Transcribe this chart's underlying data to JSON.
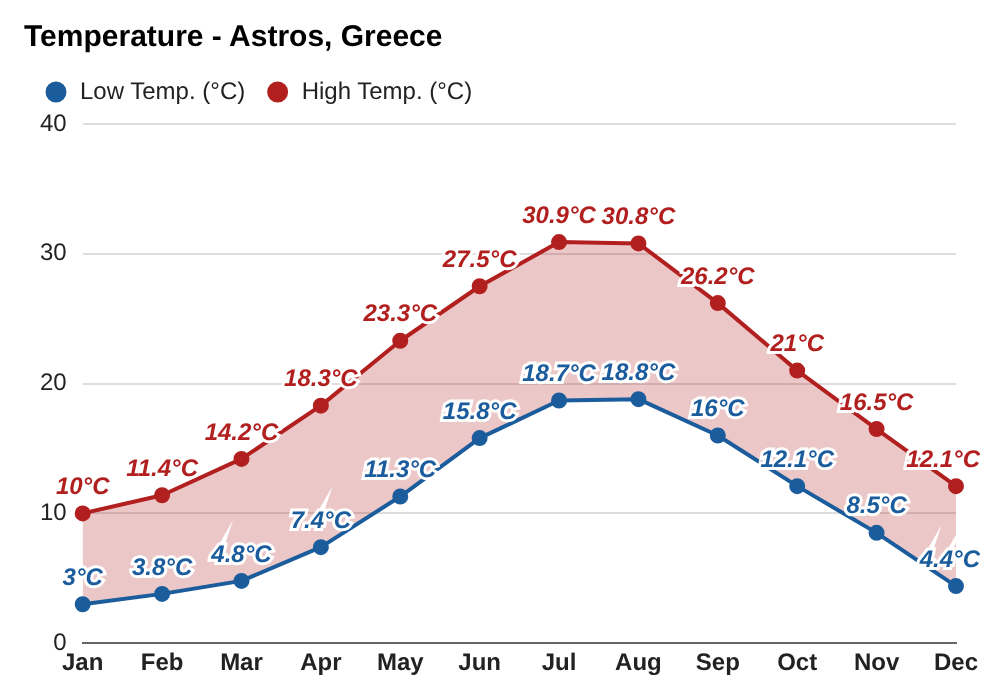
{
  "chart_data": {
    "type": "line",
    "title": "Temperature - Astros, Greece",
    "categories": [
      "Jan",
      "Feb",
      "Mar",
      "Apr",
      "May",
      "Jun",
      "Jul",
      "Aug",
      "Sep",
      "Oct",
      "Nov",
      "Dec"
    ],
    "series": [
      {
        "name": "Low Temp. (°C)",
        "color": "#1b5c9c",
        "values": [
          3,
          3.8,
          4.8,
          7.4,
          11.3,
          15.8,
          18.7,
          18.8,
          16,
          12.1,
          8.5,
          4.4
        ],
        "value_labels": [
          "3°C",
          "3.8°C",
          "4.8°C",
          "7.4°C",
          "11.3°C",
          "15.8°C",
          "18.7°C",
          "18.8°C",
          "16°C",
          "12.1°C",
          "8.5°C",
          "4.4°C"
        ]
      },
      {
        "name": "High Temp. (°C)",
        "color": "#b21f1f",
        "values": [
          10,
          11.4,
          14.2,
          18.3,
          23.3,
          27.5,
          30.9,
          30.8,
          26.2,
          21,
          16.5,
          12.1
        ],
        "value_labels": [
          "10°C",
          "11.4°C",
          "14.2°C",
          "18.3°C",
          "23.3°C",
          "27.5°C",
          "30.9°C",
          "30.8°C",
          "26.2°C",
          "21°C",
          "16.5°C",
          "12.1°C"
        ],
        "lower": [
          3,
          3.8,
          4.8,
          7.4,
          11.3,
          15.8,
          18.7,
          18.8,
          16,
          12.1,
          8.5,
          4.4
        ],
        "upper": [
          10,
          11.4,
          14.2,
          18.3,
          23.3,
          27.5,
          30.9,
          30.8,
          26.2,
          21,
          16.5,
          12.1
        ]
      }
    ],
    "ylim": [
      0,
      40
    ],
    "yticks": [
      0,
      10,
      20,
      30,
      40
    ],
    "grid": "y",
    "legend": "top left",
    "marker": "circle",
    "line_style": "solid"
  }
}
